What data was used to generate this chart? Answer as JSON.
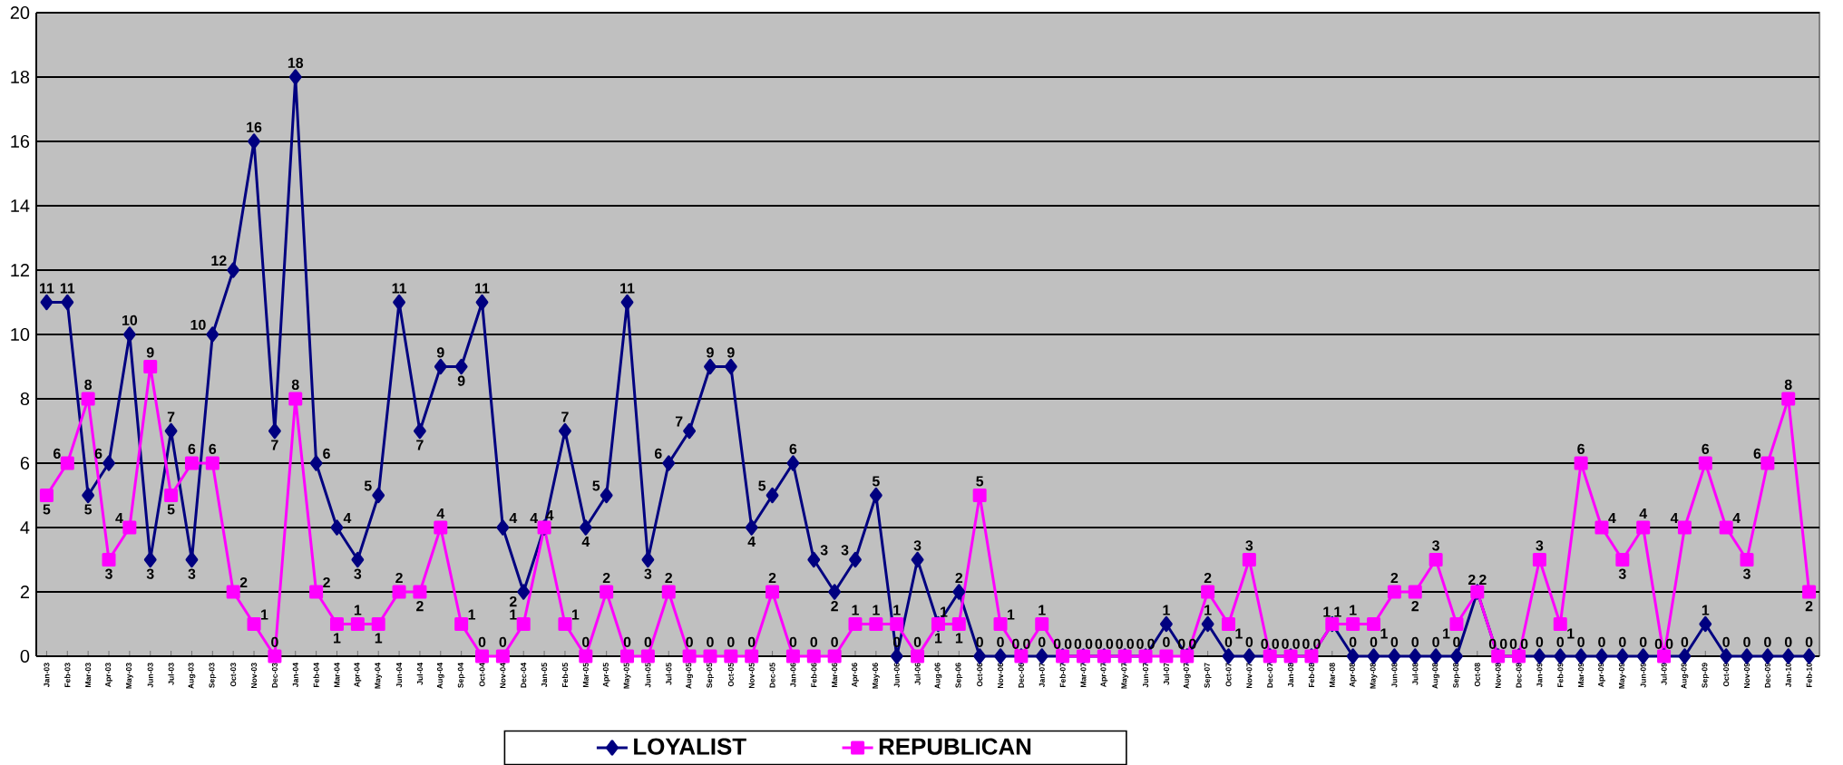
{
  "chart_data": {
    "type": "line",
    "categories": [
      "Jan-03",
      "Feb-03",
      "Mar-03",
      "Apr-03",
      "May-03",
      "Jun-03",
      "Jul-03",
      "Aug-03",
      "Sep-03",
      "Oct-03",
      "Nov-03",
      "Dec-03",
      "Jan-04",
      "Feb-04",
      "Mar-04",
      "Apr-04",
      "May-04",
      "Jun-04",
      "Jul-04",
      "Aug-04",
      "Sep-04",
      "Oct-04",
      "Nov-04",
      "Dec-04",
      "Jan-05",
      "Feb-05",
      "Mar-05",
      "Apr-05",
      "May-05",
      "Jun-05",
      "Jul-05",
      "Aug-05",
      "Sep-05",
      "Oct-05",
      "Nov-05",
      "Dec-05",
      "Jan-06",
      "Feb-06",
      "Mar-06",
      "Apr-06",
      "May-06",
      "Jun-06",
      "Jul-06",
      "Aug-06",
      "Sep-06",
      "Oct-06",
      "Nov-06",
      "Dec-06",
      "Jan-07",
      "Feb-07",
      "Mar-07",
      "Apr-07",
      "May-07",
      "Jun-07",
      "Jul-07",
      "Aug-07",
      "Sep-07",
      "Oct-07",
      "Nov-07",
      "Dec-07",
      "Jan-08",
      "Feb-08",
      "Mar-08",
      "Apr-08",
      "May-08",
      "Jun-08",
      "Jul-08",
      "Aug-08",
      "Sep-08",
      "Oct-08",
      "Nov-08",
      "Dec-08",
      "Jan-09",
      "Feb-09",
      "Mar-09",
      "Apr-09",
      "May-09",
      "Jun-09",
      "Jul-09",
      "Aug-09",
      "Sep-09",
      "Oct-09",
      "Nov-09",
      "Dec-09",
      "Jan-10",
      "Feb-10"
    ],
    "series": [
      {
        "name": "LOYALIST",
        "color": "#000080",
        "marker": "diamond",
        "values": [
          11,
          11,
          5,
          6,
          10,
          3,
          7,
          3,
          10,
          12,
          16,
          7,
          18,
          6,
          4,
          3,
          5,
          11,
          7,
          9,
          9,
          11,
          4,
          2,
          4,
          7,
          4,
          5,
          11,
          3,
          6,
          7,
          9,
          9,
          4,
          5,
          6,
          3,
          2,
          3,
          5,
          0,
          3,
          1,
          2,
          0,
          0,
          0,
          0,
          0,
          0,
          0,
          0,
          0,
          1,
          0,
          1,
          0,
          0,
          0,
          0,
          0,
          1,
          0,
          0,
          0,
          0,
          0,
          0,
          2,
          0,
          0,
          0,
          0,
          0,
          0,
          0,
          0,
          0,
          0,
          1,
          0,
          0,
          0,
          0,
          0
        ]
      },
      {
        "name": "REPUBLICAN",
        "color": "#ff00ff",
        "marker": "square",
        "values": [
          5,
          6,
          8,
          3,
          4,
          9,
          5,
          6,
          6,
          2,
          1,
          0,
          8,
          2,
          1,
          1,
          1,
          2,
          2,
          4,
          1,
          0,
          0,
          1,
          4,
          1,
          0,
          2,
          0,
          0,
          2,
          0,
          0,
          0,
          0,
          2,
          0,
          0,
          0,
          1,
          1,
          1,
          0,
          1,
          1,
          5,
          1,
          0,
          1,
          0,
          0,
          0,
          0,
          0,
          0,
          0,
          2,
          1,
          3,
          0,
          0,
          0,
          1,
          1,
          1,
          2,
          2,
          3,
          1,
          2,
          0,
          0,
          3,
          1,
          6,
          4,
          3,
          4,
          0,
          4,
          6,
          4,
          3,
          6,
          8,
          2
        ]
      }
    ],
    "ylim": [
      0,
      20
    ],
    "yticks": [
      0,
      2,
      4,
      6,
      8,
      10,
      12,
      14,
      16,
      18,
      20
    ],
    "grid": "y",
    "legend": "bottom",
    "data_labels": true
  }
}
